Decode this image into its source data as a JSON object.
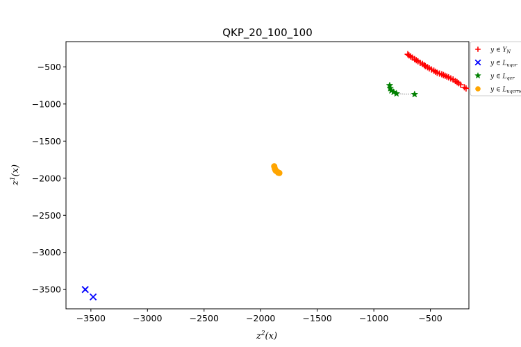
{
  "chart_data": {
    "type": "scatter",
    "title": "QKP_20_100_100",
    "xlabel_base": "z",
    "xlabel_sup": "2",
    "xlabel_arg": "(x)",
    "ylabel_base": "z",
    "ylabel_sup": "1",
    "ylabel_arg": "(x)",
    "xlim": [
      -3720,
      -160
    ],
    "ylim": [
      -3760,
      -160
    ],
    "xticks": [
      -3500,
      -3000,
      -2500,
      -2000,
      -1500,
      -1000,
      -500
    ],
    "yticks": [
      -500,
      -1000,
      -1500,
      -2000,
      -2500,
      -3000,
      -3500
    ],
    "xtick_labels": [
      "−3500",
      "−3000",
      "−2500",
      "−2000",
      "−1500",
      "−1000",
      "−500"
    ],
    "ytick_labels": [
      "−500",
      "−1000",
      "−1500",
      "−2000",
      "−2500",
      "−3000",
      "−3500"
    ],
    "grid": false,
    "legend_position": "outside-top-right",
    "series": [
      {
        "name": "y ∈ Y_N",
        "legend_label_main": "y ∈ Y",
        "legend_label_sub": "N",
        "marker": "plus",
        "color": "#ff0000",
        "line": false,
        "points": [
          [
            -700,
            -330
          ],
          [
            -690,
            -345
          ],
          [
            -675,
            -360
          ],
          [
            -660,
            -375
          ],
          [
            -640,
            -395
          ],
          [
            -625,
            -410
          ],
          [
            -610,
            -425
          ],
          [
            -590,
            -445
          ],
          [
            -570,
            -460
          ],
          [
            -555,
            -475
          ],
          [
            -545,
            -490
          ],
          [
            -525,
            -505
          ],
          [
            -510,
            -520
          ],
          [
            -490,
            -535
          ],
          [
            -470,
            -550
          ],
          [
            -455,
            -565
          ],
          [
            -440,
            -580
          ],
          [
            -420,
            -590
          ],
          [
            -400,
            -600
          ],
          [
            -385,
            -610
          ],
          [
            -370,
            -620
          ],
          [
            -355,
            -630
          ],
          [
            -340,
            -640
          ],
          [
            -320,
            -655
          ],
          [
            -300,
            -670
          ],
          [
            -280,
            -690
          ],
          [
            -265,
            -705
          ],
          [
            -250,
            -720
          ],
          [
            -235,
            -740
          ],
          [
            -200,
            -775
          ],
          [
            -185,
            -790
          ]
        ]
      },
      {
        "name": "y ∈ L_uqcr",
        "legend_label_main": "y ∈ L",
        "legend_label_sub": "uqcr",
        "marker": "x",
        "color": "#0000ff",
        "line": false,
        "points": [
          [
            -3550,
            -3500
          ],
          [
            -3480,
            -3600
          ]
        ]
      },
      {
        "name": "y ∈ L_qcr",
        "legend_label_main": "y ∈ L",
        "legend_label_sub": "qcr",
        "marker": "star",
        "color": "#008000",
        "line": true,
        "points": [
          [
            -860,
            -750
          ],
          [
            -855,
            -790
          ],
          [
            -845,
            -820
          ],
          [
            -825,
            -840
          ],
          [
            -800,
            -860
          ],
          [
            -640,
            -870
          ]
        ]
      },
      {
        "name": "y ∈ L_uqcrnc",
        "legend_label_main": "y ∈ L",
        "legend_label_sub": "uqcrnc",
        "marker": "circle",
        "color": "#ffa500",
        "line": false,
        "points": [
          [
            -1880,
            -1840
          ],
          [
            -1875,
            -1870
          ],
          [
            -1870,
            -1890
          ],
          [
            -1865,
            -1900
          ],
          [
            -1855,
            -1910
          ],
          [
            -1845,
            -1925
          ],
          [
            -1835,
            -1930
          ]
        ]
      }
    ]
  }
}
